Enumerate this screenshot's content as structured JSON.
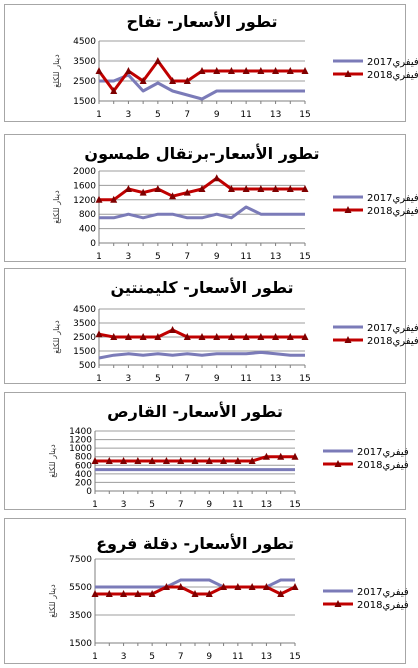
{
  "colors": {
    "series_2017": "#7b7bb8",
    "series_2018": "#c00000",
    "grid": "#9c9c9c",
    "axis": "#7f7f7f"
  },
  "chart_data": [
    {
      "type": "line",
      "title": "تطور الأسعار- تفاح",
      "ylabel": "دينار للكلغ",
      "ylim": [
        1500,
        4500
      ],
      "yticks": [
        1500,
        2500,
        3500,
        4500
      ],
      "ytick_labels": [
        "1500",
        "2500",
        "3500",
        "4500"
      ],
      "ymin_label": "1500",
      "ymax_label": "4500",
      "x": [
        1,
        2,
        3,
        4,
        5,
        6,
        7,
        8,
        9,
        10,
        11,
        12,
        13,
        14,
        15
      ],
      "x_tick_labels": [
        "1",
        "3",
        "5",
        "7",
        "9",
        "11",
        "13",
        "15"
      ],
      "series": [
        {
          "name": "فيفري2017",
          "color": "#7b7bb8",
          "marker": "none",
          "values": [
            2500,
            2500,
            2800,
            2000,
            2400,
            2000,
            1800,
            1600,
            2000,
            2000,
            2000,
            2000,
            2000,
            2000,
            2000
          ]
        },
        {
          "name": "فيفري2018",
          "color": "#c00000",
          "marker": "triangle",
          "values": [
            3000,
            2000,
            3000,
            2500,
            3500,
            2500,
            2500,
            3000,
            3000,
            3000,
            3000,
            3000,
            3000,
            3000,
            3000
          ]
        }
      ]
    },
    {
      "type": "line",
      "title": "تطور الأسعار-برتقال طمسون",
      "ylabel": "دينار للكلغ",
      "ylim": [
        0,
        2000
      ],
      "yticks": [
        0,
        400,
        800,
        1200,
        1600,
        2000
      ],
      "ytick_labels": [
        "0",
        "400",
        "800",
        "1200",
        "1600",
        "2000"
      ],
      "ymin_label": "0",
      "ymax_label": "2000",
      "x": [
        1,
        2,
        3,
        4,
        5,
        6,
        7,
        8,
        9,
        10,
        11,
        12,
        13,
        14,
        15
      ],
      "x_tick_labels": [
        "1",
        "3",
        "5",
        "7",
        "9",
        "11",
        "13",
        "15"
      ],
      "series": [
        {
          "name": "فيفري2017",
          "color": "#7b7bb8",
          "marker": "none",
          "values": [
            700,
            700,
            800,
            700,
            800,
            800,
            700,
            700,
            800,
            700,
            1000,
            800,
            800,
            800,
            800
          ]
        },
        {
          "name": "فيفري2018",
          "color": "#c00000",
          "marker": "triangle",
          "values": [
            1200,
            1200,
            1500,
            1400,
            1500,
            1300,
            1400,
            1500,
            1800,
            1500,
            1500,
            1500,
            1500,
            1500,
            1500
          ]
        }
      ]
    },
    {
      "type": "line",
      "title": "تطور الأسعار- كليمنتين",
      "ylabel": "دينار للكلغ",
      "ylim": [
        500,
        4500
      ],
      "yticks": [
        500,
        1500,
        2500,
        3500,
        4500
      ],
      "ytick_labels": [
        "500",
        "1500",
        "2500",
        "3500",
        "4500"
      ],
      "ymin_label": "500",
      "ymax_label": "4500",
      "x": [
        1,
        2,
        3,
        4,
        5,
        6,
        7,
        8,
        9,
        10,
        11,
        12,
        13,
        14,
        15
      ],
      "x_tick_labels": [
        "1",
        "3",
        "5",
        "7",
        "9",
        "11",
        "13",
        "15"
      ],
      "series": [
        {
          "name": "فيفري2017",
          "color": "#7b7bb8",
          "marker": "none",
          "values": [
            1000,
            1200,
            1300,
            1200,
            1300,
            1200,
            1300,
            1200,
            1300,
            1300,
            1300,
            1400,
            1300,
            1200,
            1200
          ]
        },
        {
          "name": "فيفري2018",
          "color": "#c00000",
          "marker": "triangle",
          "values": [
            2700,
            2500,
            2500,
            2500,
            2500,
            3000,
            2500,
            2500,
            2500,
            2500,
            2500,
            2500,
            2500,
            2500,
            2500
          ]
        }
      ]
    },
    {
      "type": "line",
      "title": "تطور الأسعار- القارص",
      "ylabel": "دينار للكلغ",
      "ylim": [
        0,
        1400
      ],
      "yticks": [
        0,
        200,
        400,
        600,
        800,
        1000,
        1200,
        1400
      ],
      "ytick_labels": [
        "0",
        "200",
        "400",
        "600",
        "800",
        "1000",
        "1200",
        "1400"
      ],
      "ymin_label": "0",
      "ymax_label": "1400",
      "x": [
        1,
        2,
        3,
        4,
        5,
        6,
        7,
        8,
        9,
        10,
        11,
        12,
        13,
        14,
        15
      ],
      "x_tick_labels": [
        "1",
        "3",
        "5",
        "7",
        "9",
        "11",
        "13",
        "15"
      ],
      "series": [
        {
          "name": "فيفري2017",
          "color": "#7b7bb8",
          "marker": "none",
          "values": [
            500,
            500,
            500,
            500,
            500,
            500,
            500,
            500,
            500,
            500,
            500,
            500,
            500,
            500,
            500
          ]
        },
        {
          "name": "فيفري2018",
          "color": "#c00000",
          "marker": "triangle",
          "values": [
            700,
            700,
            700,
            700,
            700,
            700,
            700,
            700,
            700,
            700,
            700,
            700,
            800,
            800,
            800
          ]
        }
      ]
    },
    {
      "type": "line",
      "title": "تطور الأسعار- دقلة فروع",
      "ylabel": "دينار للكلغ",
      "ylim": [
        1500,
        7500
      ],
      "yticks": [
        1500,
        3500,
        5500,
        7500
      ],
      "ytick_labels": [
        "1500",
        "3500",
        "5500",
        "7500"
      ],
      "ymin_label": "1500",
      "ymax_label": "7500",
      "x": [
        1,
        2,
        3,
        4,
        5,
        6,
        7,
        8,
        9,
        10,
        11,
        12,
        13,
        14,
        15
      ],
      "x_tick_labels": [
        "1",
        "3",
        "5",
        "7",
        "9",
        "11",
        "13",
        "15"
      ],
      "series": [
        {
          "name": "فيفري2017",
          "color": "#7b7bb8",
          "marker": "none",
          "values": [
            5500,
            5500,
            5500,
            5500,
            5500,
            5500,
            6000,
            6000,
            6000,
            5500,
            5500,
            5500,
            5500,
            6000,
            6000
          ]
        },
        {
          "name": "فيفري2018",
          "color": "#c00000",
          "marker": "triangle",
          "values": [
            5000,
            5000,
            5000,
            5000,
            5000,
            5500,
            5500,
            5000,
            5000,
            5500,
            5500,
            5500,
            5500,
            5000,
            5500
          ]
        }
      ]
    }
  ]
}
